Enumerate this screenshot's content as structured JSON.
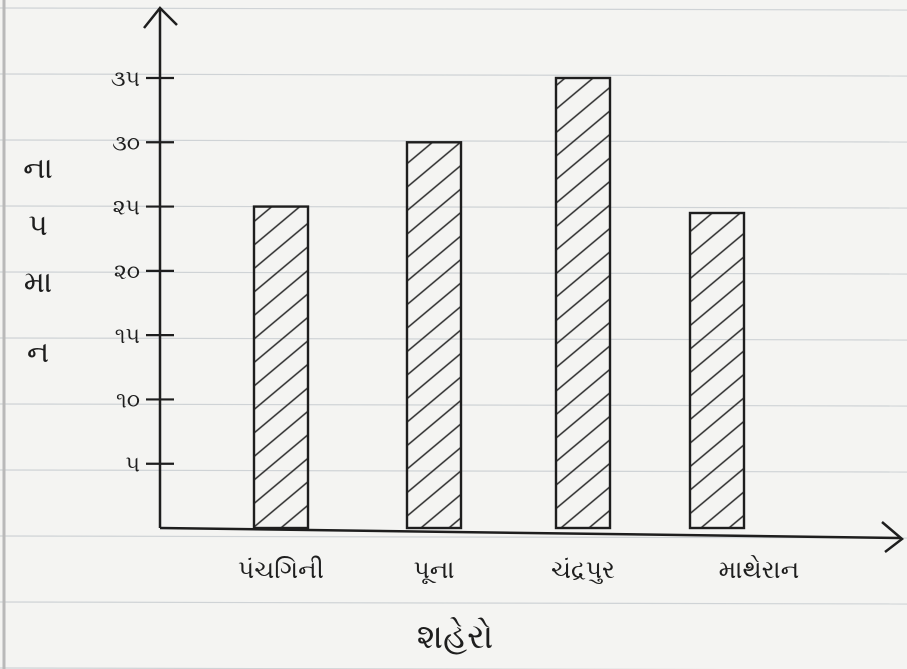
{
  "chart_data": {
    "type": "bar",
    "xlabel": "શહેરો",
    "ylabel_chars": [
      "ના",
      "પ",
      "મા",
      "ન"
    ],
    "categories": [
      "પંચગિની",
      "પૂના",
      "ચંદ્રપુર",
      "માથેરાન"
    ],
    "values": [
      25,
      30,
      35,
      24.5
    ],
    "yticks": [
      {
        "value": 5,
        "label": "૫"
      },
      {
        "value": 10,
        "label": "૧૦"
      },
      {
        "value": 15,
        "label": "૧૫"
      },
      {
        "value": 20,
        "label": "૨૦"
      },
      {
        "value": 25,
        "label": "૨૫"
      },
      {
        "value": 30,
        "label": "૩૦"
      },
      {
        "value": 35,
        "label": "૩૫"
      }
    ],
    "ylim": [
      0,
      35
    ],
    "bar_fill": "hatched",
    "grid": "ruled notebook lines",
    "colors": {
      "ink": "#1e1e1e",
      "paper": "#f4f4f2",
      "rule": "#cfd3d6",
      "margin": "#b9b9b9"
    }
  }
}
